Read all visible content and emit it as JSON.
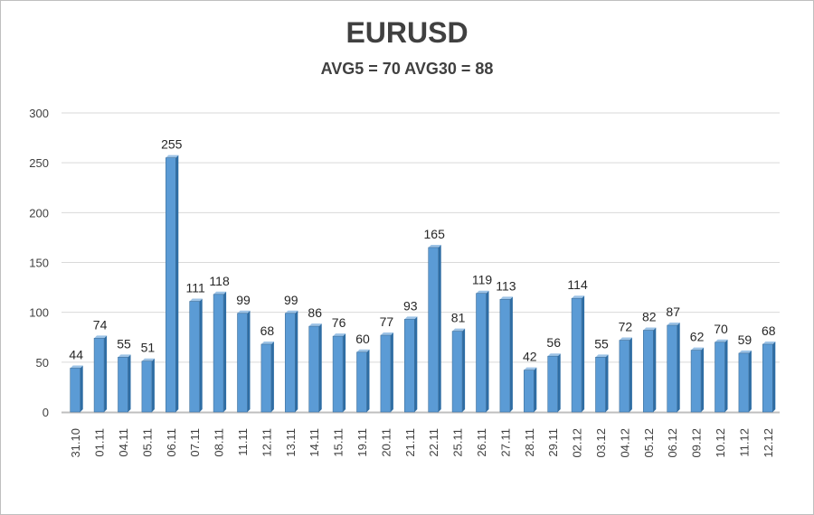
{
  "chart_data": {
    "type": "bar",
    "title": "EURUSD",
    "subtitle": "AVG5 = 70 AVG30 = 88",
    "categories": [
      "31.10",
      "01.11",
      "04.11",
      "05.11",
      "06.11",
      "07.11",
      "08.11",
      "11.11",
      "12.11",
      "13.11",
      "14.11",
      "15.11",
      "19.11",
      "20.11",
      "21.11",
      "22.11",
      "25.11",
      "26.11",
      "27.11",
      "28.11",
      "29.11",
      "02.12",
      "03.12",
      "04.12",
      "05.12",
      "06.12",
      "09.12",
      "10.12",
      "11.12",
      "12.12"
    ],
    "values": [
      44,
      74,
      55,
      51,
      255,
      111,
      118,
      99,
      68,
      99,
      86,
      76,
      60,
      77,
      93,
      165,
      81,
      119,
      113,
      42,
      56,
      114,
      55,
      72,
      82,
      87,
      62,
      70,
      59,
      68
    ],
    "ylim": [
      0,
      300
    ],
    "yticks": [
      0,
      50,
      100,
      150,
      200,
      250,
      300
    ],
    "grid": true,
    "colors": {
      "bar_front": "#5b9bd5",
      "bar_side": "#2e6da4",
      "bar_top": "#9dc3e6",
      "grid": "#d9d9d9"
    }
  }
}
